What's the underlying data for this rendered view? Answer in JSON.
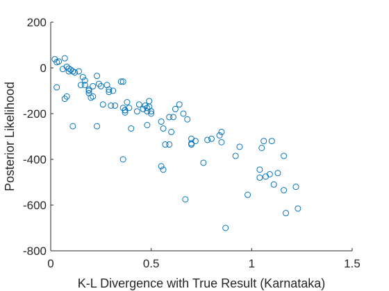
{
  "chart_data": {
    "type": "scatter",
    "title": "",
    "xlabel": "K-L Divergence with True Result (Karnataka)",
    "ylabel": "Posterior Likelihood",
    "xlim": [
      0,
      1.5
    ],
    "ylim": [
      -800,
      200
    ],
    "xticks": [
      0,
      0.5,
      1,
      1.5
    ],
    "xtick_labels": [
      "0",
      "0.5",
      "1",
      "1.5"
    ],
    "yticks": [
      200,
      0,
      -200,
      -400,
      -600,
      -800
    ],
    "ytick_labels": [
      "200",
      "0",
      "-200",
      "-400",
      "-600",
      "-800"
    ],
    "grid": false,
    "marker": "open-circle",
    "color": "#0072BD",
    "series": [
      {
        "x": [
          0.02,
          0.03,
          0.04,
          0.06,
          0.07,
          0.08,
          0.09,
          0.09,
          0.1,
          0.11,
          0.12,
          0.14,
          0.16,
          0.17,
          0.17,
          0.19,
          0.19,
          0.2,
          0.21,
          0.23,
          0.24,
          0.25,
          0.26,
          0.28,
          0.29,
          0.29,
          0.31,
          0.32,
          0.35,
          0.36,
          0.37,
          0.38,
          0.39,
          0.43,
          0.44,
          0.46,
          0.47,
          0.48,
          0.48,
          0.49,
          0.49,
          0.5,
          0.5,
          0.03,
          0.07,
          0.08,
          0.11,
          0.15,
          0.19,
          0.21,
          0.23,
          0.3,
          0.36,
          0.37,
          0.37,
          0.4,
          0.48,
          0.55,
          0.56,
          0.57,
          0.59,
          0.59,
          0.6,
          0.61,
          0.62,
          0.64,
          0.66,
          0.68,
          0.7,
          0.7,
          0.76,
          0.78,
          0.8,
          0.84,
          0.85,
          0.85,
          0.7,
          0.72,
          0.92,
          0.94,
          0.98,
          1.04,
          1.05,
          1.06,
          1.09,
          1.16,
          1.04,
          1.07,
          1.1,
          1.11,
          1.13,
          1.16,
          1.22,
          1.17,
          1.23,
          0.36,
          0.55,
          0.56,
          0.67,
          0.87
        ],
        "y": [
          38,
          25,
          28,
          -5,
          42,
          5,
          -3,
          -15,
          -8,
          -15,
          -20,
          -15,
          -40,
          -55,
          -75,
          -100,
          -110,
          -130,
          -125,
          -35,
          -70,
          -80,
          -160,
          -75,
          -95,
          -105,
          -100,
          -165,
          -60,
          -175,
          -185,
          -150,
          -175,
          -190,
          -160,
          -180,
          -165,
          -175,
          -190,
          -145,
          -170,
          -200,
          -190,
          -85,
          -135,
          -125,
          -255,
          -75,
          -95,
          -80,
          -255,
          -165,
          -400,
          -195,
          -185,
          -265,
          -250,
          -235,
          -265,
          -335,
          -215,
          -335,
          -280,
          -215,
          -180,
          -160,
          -200,
          -225,
          -310,
          -330,
          -415,
          -315,
          -310,
          -295,
          -325,
          -280,
          -335,
          -320,
          -385,
          -345,
          -555,
          -445,
          -350,
          -320,
          -465,
          -385,
          -480,
          -475,
          -320,
          -510,
          -460,
          -535,
          -520,
          -635,
          -615,
          -60,
          -430,
          -445,
          -575,
          -700
        ]
      }
    ]
  }
}
